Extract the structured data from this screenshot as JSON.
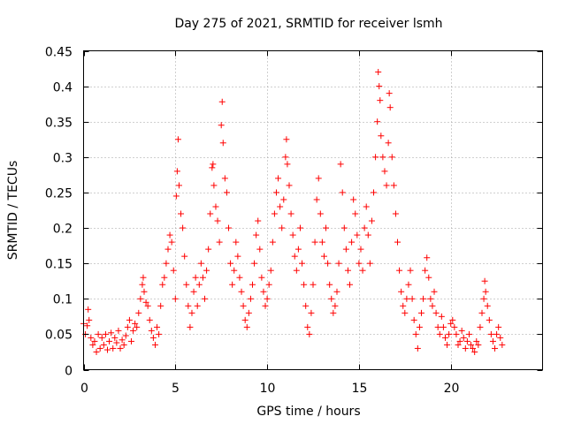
{
  "chart_data": {
    "type": "scatter",
    "title": "Day 275 of 2021, SRMTID for receiver lsmh",
    "xlabel": "GPS time / hours",
    "ylabel": "SRMTID / TECUs",
    "xlim": [
      0,
      25
    ],
    "ylim": [
      0,
      0.45
    ],
    "xticks": [
      0,
      5,
      10,
      15,
      20
    ],
    "xtick_labels": [
      "0",
      "5",
      "10",
      "15",
      "20"
    ],
    "yticks": [
      0,
      0.05,
      0.1,
      0.15,
      0.2,
      0.25,
      0.3,
      0.35,
      0.4,
      0.45
    ],
    "ytick_labels": [
      "0",
      "0.05",
      "0.1",
      "0.15",
      "0.2",
      "0.25",
      "0.3",
      "0.35",
      "0.4",
      "0.45"
    ],
    "grid": true,
    "marker": "plus",
    "color": "#ff0000",
    "series": [
      {
        "name": "SRMTID",
        "points": [
          [
            0.0,
            0.065
          ],
          [
            0.1,
            0.05
          ],
          [
            0.2,
            0.062
          ],
          [
            0.25,
            0.085
          ],
          [
            0.3,
            0.07
          ],
          [
            0.4,
            0.045
          ],
          [
            0.5,
            0.035
          ],
          [
            0.6,
            0.04
          ],
          [
            0.7,
            0.025
          ],
          [
            0.8,
            0.05
          ],
          [
            0.9,
            0.03
          ],
          [
            1.0,
            0.045
          ],
          [
            1.1,
            0.035
          ],
          [
            1.2,
            0.05
          ],
          [
            1.3,
            0.028
          ],
          [
            1.4,
            0.04
          ],
          [
            1.5,
            0.052
          ],
          [
            1.6,
            0.03
          ],
          [
            1.7,
            0.045
          ],
          [
            1.8,
            0.038
          ],
          [
            1.9,
            0.055
          ],
          [
            2.0,
            0.03
          ],
          [
            2.1,
            0.042
          ],
          [
            2.2,
            0.035
          ],
          [
            2.3,
            0.048
          ],
          [
            2.4,
            0.06
          ],
          [
            2.5,
            0.07
          ],
          [
            2.6,
            0.04
          ],
          [
            2.7,
            0.055
          ],
          [
            2.8,
            0.065
          ],
          [
            2.9,
            0.06
          ],
          [
            3.0,
            0.08
          ],
          [
            3.1,
            0.1
          ],
          [
            3.2,
            0.12
          ],
          [
            3.25,
            0.13
          ],
          [
            3.3,
            0.11
          ],
          [
            3.4,
            0.095
          ],
          [
            3.5,
            0.09
          ],
          [
            3.6,
            0.07
          ],
          [
            3.7,
            0.055
          ],
          [
            3.8,
            0.045
          ],
          [
            3.9,
            0.035
          ],
          [
            4.0,
            0.06
          ],
          [
            4.1,
            0.05
          ],
          [
            4.2,
            0.09
          ],
          [
            4.3,
            0.12
          ],
          [
            4.4,
            0.13
          ],
          [
            4.5,
            0.15
          ],
          [
            4.6,
            0.17
          ],
          [
            4.7,
            0.19
          ],
          [
            4.8,
            0.18
          ],
          [
            4.9,
            0.14
          ],
          [
            5.0,
            0.1
          ],
          [
            5.05,
            0.245
          ],
          [
            5.1,
            0.28
          ],
          [
            5.15,
            0.325
          ],
          [
            5.2,
            0.26
          ],
          [
            5.3,
            0.22
          ],
          [
            5.4,
            0.2
          ],
          [
            5.5,
            0.16
          ],
          [
            5.6,
            0.12
          ],
          [
            5.7,
            0.09
          ],
          [
            5.8,
            0.06
          ],
          [
            5.9,
            0.08
          ],
          [
            6.0,
            0.11
          ],
          [
            6.1,
            0.13
          ],
          [
            6.2,
            0.09
          ],
          [
            6.3,
            0.12
          ],
          [
            6.4,
            0.15
          ],
          [
            6.5,
            0.13
          ],
          [
            6.6,
            0.1
          ],
          [
            6.7,
            0.14
          ],
          [
            6.8,
            0.17
          ],
          [
            6.9,
            0.22
          ],
          [
            7.0,
            0.285
          ],
          [
            7.05,
            0.29
          ],
          [
            7.1,
            0.26
          ],
          [
            7.2,
            0.23
          ],
          [
            7.3,
            0.21
          ],
          [
            7.4,
            0.18
          ],
          [
            7.5,
            0.345
          ],
          [
            7.55,
            0.378
          ],
          [
            7.6,
            0.32
          ],
          [
            7.7,
            0.27
          ],
          [
            7.8,
            0.25
          ],
          [
            7.9,
            0.2
          ],
          [
            8.0,
            0.15
          ],
          [
            8.1,
            0.12
          ],
          [
            8.2,
            0.14
          ],
          [
            8.3,
            0.18
          ],
          [
            8.4,
            0.16
          ],
          [
            8.5,
            0.13
          ],
          [
            8.6,
            0.11
          ],
          [
            8.7,
            0.09
          ],
          [
            8.8,
            0.07
          ],
          [
            8.9,
            0.06
          ],
          [
            9.0,
            0.08
          ],
          [
            9.1,
            0.1
          ],
          [
            9.2,
            0.12
          ],
          [
            9.3,
            0.15
          ],
          [
            9.4,
            0.19
          ],
          [
            9.5,
            0.21
          ],
          [
            9.6,
            0.17
          ],
          [
            9.7,
            0.13
          ],
          [
            9.8,
            0.11
          ],
          [
            9.9,
            0.09
          ],
          [
            10.0,
            0.1
          ],
          [
            10.1,
            0.12
          ],
          [
            10.2,
            0.14
          ],
          [
            10.3,
            0.18
          ],
          [
            10.4,
            0.22
          ],
          [
            10.5,
            0.25
          ],
          [
            10.6,
            0.27
          ],
          [
            10.7,
            0.23
          ],
          [
            10.8,
            0.2
          ],
          [
            10.9,
            0.24
          ],
          [
            11.0,
            0.3
          ],
          [
            11.05,
            0.325
          ],
          [
            11.1,
            0.29
          ],
          [
            11.2,
            0.26
          ],
          [
            11.3,
            0.22
          ],
          [
            11.4,
            0.19
          ],
          [
            11.5,
            0.16
          ],
          [
            11.6,
            0.14
          ],
          [
            11.7,
            0.17
          ],
          [
            11.8,
            0.2
          ],
          [
            11.9,
            0.15
          ],
          [
            12.0,
            0.12
          ],
          [
            12.1,
            0.09
          ],
          [
            12.2,
            0.06
          ],
          [
            12.3,
            0.05
          ],
          [
            12.4,
            0.08
          ],
          [
            12.5,
            0.12
          ],
          [
            12.6,
            0.18
          ],
          [
            12.7,
            0.24
          ],
          [
            12.8,
            0.27
          ],
          [
            12.9,
            0.22
          ],
          [
            13.0,
            0.18
          ],
          [
            13.1,
            0.16
          ],
          [
            13.2,
            0.2
          ],
          [
            13.3,
            0.15
          ],
          [
            13.4,
            0.12
          ],
          [
            13.5,
            0.1
          ],
          [
            13.6,
            0.08
          ],
          [
            13.7,
            0.09
          ],
          [
            13.8,
            0.11
          ],
          [
            13.9,
            0.15
          ],
          [
            14.0,
            0.29
          ],
          [
            14.1,
            0.25
          ],
          [
            14.2,
            0.2
          ],
          [
            14.3,
            0.17
          ],
          [
            14.4,
            0.14
          ],
          [
            14.5,
            0.12
          ],
          [
            14.6,
            0.18
          ],
          [
            14.7,
            0.24
          ],
          [
            14.8,
            0.22
          ],
          [
            14.9,
            0.19
          ],
          [
            15.0,
            0.15
          ],
          [
            15.1,
            0.17
          ],
          [
            15.2,
            0.14
          ],
          [
            15.3,
            0.2
          ],
          [
            15.4,
            0.23
          ],
          [
            15.5,
            0.19
          ],
          [
            15.6,
            0.15
          ],
          [
            15.7,
            0.21
          ],
          [
            15.8,
            0.25
          ],
          [
            15.9,
            0.3
          ],
          [
            16.0,
            0.35
          ],
          [
            16.05,
            0.42
          ],
          [
            16.1,
            0.4
          ],
          [
            16.15,
            0.38
          ],
          [
            16.2,
            0.33
          ],
          [
            16.3,
            0.3
          ],
          [
            16.4,
            0.28
          ],
          [
            16.5,
            0.26
          ],
          [
            16.6,
            0.32
          ],
          [
            16.65,
            0.39
          ],
          [
            16.7,
            0.37
          ],
          [
            16.8,
            0.3
          ],
          [
            16.9,
            0.26
          ],
          [
            17.0,
            0.22
          ],
          [
            17.1,
            0.18
          ],
          [
            17.2,
            0.14
          ],
          [
            17.3,
            0.11
          ],
          [
            17.4,
            0.09
          ],
          [
            17.5,
            0.08
          ],
          [
            17.6,
            0.1
          ],
          [
            17.7,
            0.12
          ],
          [
            17.8,
            0.14
          ],
          [
            17.9,
            0.1
          ],
          [
            18.0,
            0.07
          ],
          [
            18.1,
            0.05
          ],
          [
            18.2,
            0.03
          ],
          [
            18.3,
            0.06
          ],
          [
            18.4,
            0.08
          ],
          [
            18.5,
            0.1
          ],
          [
            18.6,
            0.14
          ],
          [
            18.7,
            0.158
          ],
          [
            18.8,
            0.13
          ],
          [
            18.9,
            0.1
          ],
          [
            19.0,
            0.09
          ],
          [
            19.1,
            0.11
          ],
          [
            19.2,
            0.08
          ],
          [
            19.3,
            0.06
          ],
          [
            19.4,
            0.05
          ],
          [
            19.5,
            0.075
          ],
          [
            19.6,
            0.06
          ],
          [
            19.7,
            0.045
          ],
          [
            19.8,
            0.035
          ],
          [
            19.9,
            0.05
          ],
          [
            20.0,
            0.065
          ],
          [
            20.1,
            0.07
          ],
          [
            20.2,
            0.06
          ],
          [
            20.3,
            0.05
          ],
          [
            20.4,
            0.035
          ],
          [
            20.5,
            0.04
          ],
          [
            20.6,
            0.055
          ],
          [
            20.7,
            0.045
          ],
          [
            20.8,
            0.03
          ],
          [
            20.9,
            0.04
          ],
          [
            21.0,
            0.05
          ],
          [
            21.1,
            0.035
          ],
          [
            21.2,
            0.03
          ],
          [
            21.3,
            0.025
          ],
          [
            21.4,
            0.04
          ],
          [
            21.5,
            0.035
          ],
          [
            21.6,
            0.06
          ],
          [
            21.7,
            0.08
          ],
          [
            21.8,
            0.1
          ],
          [
            21.85,
            0.125
          ],
          [
            21.9,
            0.11
          ],
          [
            22.0,
            0.09
          ],
          [
            22.1,
            0.07
          ],
          [
            22.2,
            0.05
          ],
          [
            22.3,
            0.04
          ],
          [
            22.4,
            0.03
          ],
          [
            22.5,
            0.05
          ],
          [
            22.6,
            0.06
          ],
          [
            22.7,
            0.045
          ],
          [
            22.8,
            0.035
          ]
        ]
      }
    ]
  }
}
